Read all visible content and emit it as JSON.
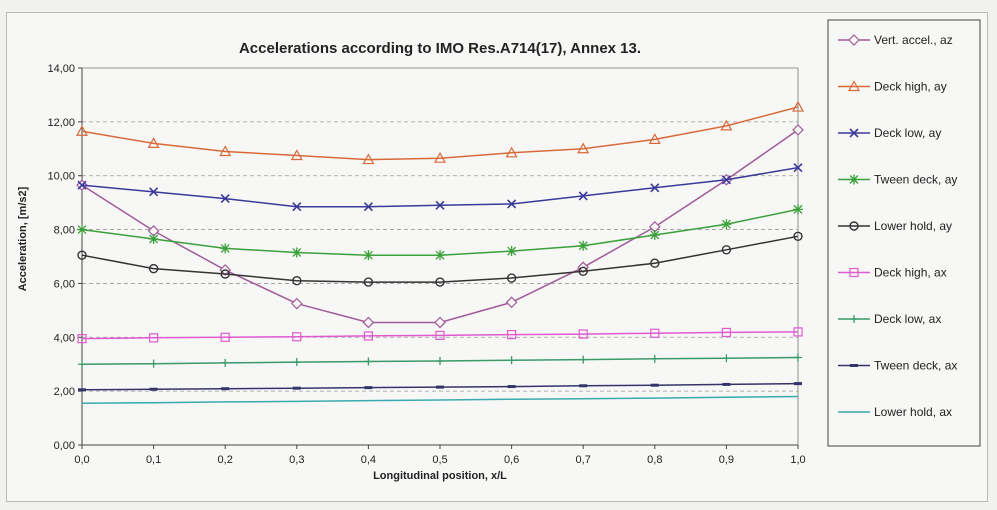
{
  "chart_data": {
    "type": "line",
    "title": "Accelerations according to IMO Res.A714(17), Annex 13.",
    "xlabel": "Longitudinal position,  x/L",
    "ylabel": "Acceleration, [m/s2]",
    "xlim": [
      0,
      1
    ],
    "ylim": [
      0,
      14
    ],
    "x": [
      0.0,
      0.1,
      0.2,
      0.3,
      0.4,
      0.5,
      0.6,
      0.7,
      0.8,
      0.9,
      1.0
    ],
    "x_tick_labels": [
      "0,0",
      "0,1",
      "0,2",
      "0,3",
      "0,4",
      "0,5",
      "0,6",
      "0,7",
      "0,8",
      "0,9",
      "1,0"
    ],
    "y_ticks": [
      0,
      2,
      4,
      6,
      8,
      10,
      12,
      14
    ],
    "y_tick_labels": [
      "0,00",
      "2,00",
      "4,00",
      "6,00",
      "8,00",
      "10,00",
      "12,00",
      "14,00"
    ],
    "grid": "horizontal dashed",
    "legend_position": "right",
    "series": [
      {
        "name": "Vert. accel., az",
        "color": "#a05a9a",
        "marker": "diamond",
        "values": [
          9.65,
          7.95,
          6.5,
          5.25,
          4.55,
          4.55,
          5.3,
          6.6,
          8.1,
          9.85,
          11.7
        ]
      },
      {
        "name": "Deck high, ay",
        "color": "#d86a3a",
        "marker": "triangle",
        "values": [
          11.65,
          11.2,
          10.9,
          10.75,
          10.6,
          10.65,
          10.85,
          11.0,
          11.35,
          11.85,
          12.55
        ]
      },
      {
        "name": "Deck low, ay",
        "color": "#3a3a9a",
        "marker": "x",
        "values": [
          9.65,
          9.4,
          9.15,
          8.85,
          8.85,
          8.9,
          8.95,
          9.25,
          9.55,
          9.85,
          10.3
        ]
      },
      {
        "name": "Tween deck, ay",
        "color": "#3aa03a",
        "marker": "star",
        "values": [
          8.0,
          7.65,
          7.3,
          7.15,
          7.05,
          7.05,
          7.2,
          7.4,
          7.8,
          8.2,
          8.75
        ]
      },
      {
        "name": "Lower hold, ay",
        "color": "#333333",
        "marker": "circle",
        "values": [
          7.05,
          6.55,
          6.35,
          6.1,
          6.05,
          6.05,
          6.2,
          6.45,
          6.75,
          7.25,
          7.75
        ]
      },
      {
        "name": "Deck high, ax",
        "color": "#e05ad0",
        "marker": "square",
        "values": [
          3.95,
          3.98,
          4.0,
          4.02,
          4.05,
          4.07,
          4.1,
          4.12,
          4.15,
          4.18,
          4.2
        ]
      },
      {
        "name": "Deck low, ax",
        "color": "#3a9a6a",
        "marker": "plus",
        "values": [
          3.0,
          3.02,
          3.05,
          3.08,
          3.1,
          3.12,
          3.15,
          3.17,
          3.2,
          3.22,
          3.25
        ]
      },
      {
        "name": "Tween deck, ax",
        "color": "#34346a",
        "marker": "dash",
        "values": [
          2.05,
          2.07,
          2.09,
          2.11,
          2.13,
          2.15,
          2.17,
          2.2,
          2.22,
          2.25,
          2.28
        ]
      },
      {
        "name": "Lower hold, ax",
        "color": "#3aaab0",
        "marker": "none",
        "values": [
          1.55,
          1.57,
          1.6,
          1.62,
          1.65,
          1.67,
          1.7,
          1.72,
          1.74,
          1.77,
          1.8
        ]
      }
    ]
  }
}
